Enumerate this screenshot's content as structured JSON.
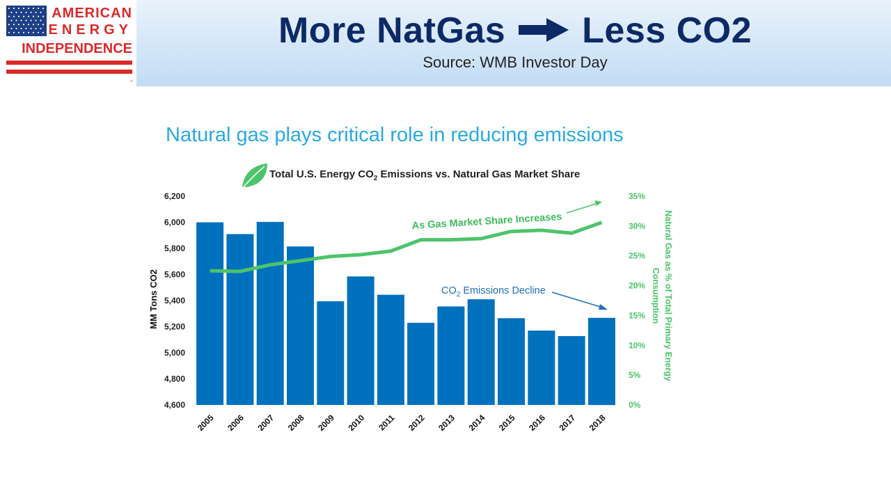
{
  "logo": {
    "line1": "AMERICAN",
    "line2": "ENERGY",
    "line3": "INDEPENDENCE",
    "tm": "™",
    "icon": "us-flag-icon"
  },
  "header": {
    "title_left": "More NatGas",
    "arrow_icon": "right-arrow-icon",
    "title_right": "Less CO2",
    "subtitle": "Source: WMB Investor Day"
  },
  "chart_title": "Natural gas plays critical role in reducing emissions",
  "colors": {
    "bar": "#0071bd",
    "line": "#4cc46a",
    "title": "#29a9e0",
    "header_text": "#0d2a66",
    "annotation_blue": "#1f6fb8"
  },
  "chart_data": {
    "type": "bar",
    "title": "Total U.S. Energy CO2 Emissions vs. Natural Gas Market Share",
    "title_main": "Total U.S. Energy CO",
    "title_sub": "2",
    "title_rest": " Emissions vs. Natural Gas Market Share",
    "title_icon": "leaf-icon",
    "categories": [
      "2005",
      "2006",
      "2007",
      "2008",
      "2009",
      "2010",
      "2011",
      "2012",
      "2013",
      "2014",
      "2015",
      "2016",
      "2017",
      "2018"
    ],
    "ylabel": "MM Tons CO2",
    "ylim": [
      4600,
      6200
    ],
    "yticks": [
      4600,
      4800,
      5000,
      5200,
      5400,
      5600,
      5800,
      6000,
      6200
    ],
    "ytick_labels": [
      "4,600",
      "4,800",
      "5,000",
      "5,200",
      "5,400",
      "5,600",
      "5,800",
      "6,000",
      "6,200"
    ],
    "y2label_line1": "Natural Gas as % of Total Primary Energy",
    "y2label_line2": "Consumption",
    "y2lim": [
      0,
      35
    ],
    "y2ticks": [
      0,
      5,
      10,
      15,
      20,
      25,
      30,
      35
    ],
    "y2tick_labels": [
      "0%",
      "5%",
      "10%",
      "15%",
      "20%",
      "25%",
      "30%",
      "35%"
    ],
    "grid": false,
    "series": [
      {
        "type": "bar",
        "axis": "left",
        "values": [
          6000,
          5910,
          6003,
          5815,
          5395,
          5585,
          5445,
          5230,
          5355,
          5410,
          5265,
          5170,
          5128,
          5268
        ]
      },
      {
        "type": "line",
        "axis": "right",
        "values": [
          22.5,
          22.4,
          23.5,
          24.2,
          24.9,
          25.2,
          25.8,
          27.7,
          27.7,
          27.9,
          29.1,
          29.3,
          28.8,
          30.6
        ]
      }
    ],
    "annotations": {
      "gas": "As Gas Market Share Increases",
      "co2_main": "CO",
      "co2_sub": "2",
      "co2_rest": " Emissions Decline"
    }
  }
}
